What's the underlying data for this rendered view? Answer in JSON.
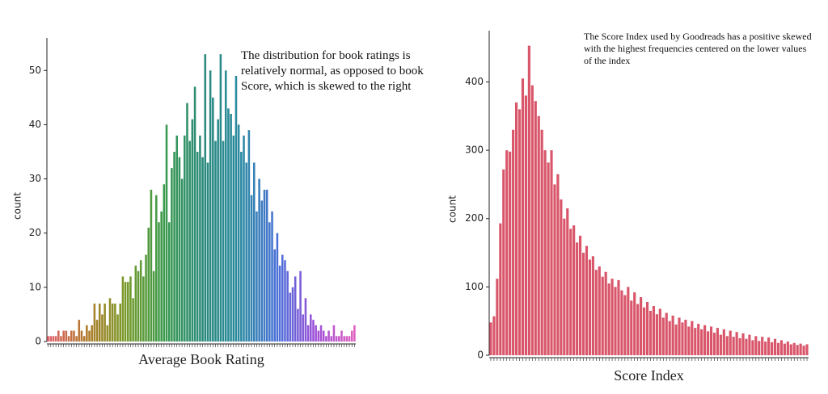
{
  "chart_data": [
    {
      "type": "bar",
      "xlabel": "Average Book Rating",
      "ylabel": "count",
      "annotation": "The distribution for book ratings is relatively normal, as opposed to book Score, which is skewed to the right",
      "values": [
        1,
        1,
        1,
        1,
        2,
        1,
        2,
        2,
        1,
        2,
        2,
        1,
        4,
        2,
        1,
        3,
        2,
        3,
        7,
        4,
        7,
        5,
        7,
        3,
        8,
        7,
        7,
        5,
        7,
        12,
        11,
        11,
        12,
        8,
        14,
        13,
        15,
        12,
        16,
        21,
        28,
        13,
        27,
        22,
        24,
        29,
        40,
        22,
        32,
        35,
        38,
        34,
        30,
        38,
        44,
        37,
        41,
        47,
        35,
        38,
        34,
        53,
        33,
        50,
        45,
        37,
        41,
        53,
        37,
        50,
        43,
        42,
        38,
        49,
        40,
        35,
        38,
        33,
        39,
        27,
        33,
        24,
        30,
        26,
        28,
        28,
        22,
        24,
        17,
        20,
        14,
        16,
        15,
        13,
        9,
        10,
        12,
        6,
        13,
        5,
        8,
        3,
        5,
        4,
        3,
        2,
        3,
        2,
        1,
        2,
        1,
        3,
        1,
        1,
        2,
        1,
        1,
        1,
        2,
        3
      ],
      "palette": [
        "#e0606a",
        "#b07a2a",
        "#7a9a2a",
        "#3a9a4a",
        "#2a8a7a",
        "#2a8aa0",
        "#4a70d8",
        "#a050d8",
        "#e060c0"
      ],
      "ylim": [
        0,
        56
      ],
      "yticks": [
        0,
        10,
        20,
        30,
        40,
        50
      ]
    },
    {
      "type": "bar",
      "xlabel": "Score Index",
      "ylabel": "count",
      "annotation": "The Score Index used by Goodreads has a positive skewed with the highest frequencies centered on the lower values of the index",
      "values": [
        48,
        57,
        112,
        193,
        272,
        300,
        298,
        330,
        370,
        360,
        405,
        380,
        453,
        395,
        372,
        350,
        330,
        300,
        282,
        300,
        250,
        265,
        228,
        200,
        215,
        185,
        190,
        165,
        175,
        150,
        160,
        140,
        145,
        125,
        130,
        115,
        122,
        105,
        112,
        100,
        110,
        95,
        88,
        100,
        80,
        92,
        75,
        85,
        70,
        78,
        65,
        72,
        60,
        68,
        55,
        62,
        50,
        58,
        45,
        55,
        48,
        52,
        42,
        50,
        40,
        46,
        38,
        44,
        35,
        42,
        33,
        40,
        30,
        38,
        28,
        36,
        27,
        34,
        25,
        32,
        24,
        30,
        22,
        28,
        21,
        27,
        20,
        26,
        19,
        24,
        18,
        22,
        17,
        20,
        16,
        18,
        15,
        17,
        14,
        16
      ],
      "color": "#d9566a",
      "ylim": [
        0,
        475
      ],
      "yticks": [
        0,
        100,
        200,
        300,
        400
      ]
    }
  ]
}
